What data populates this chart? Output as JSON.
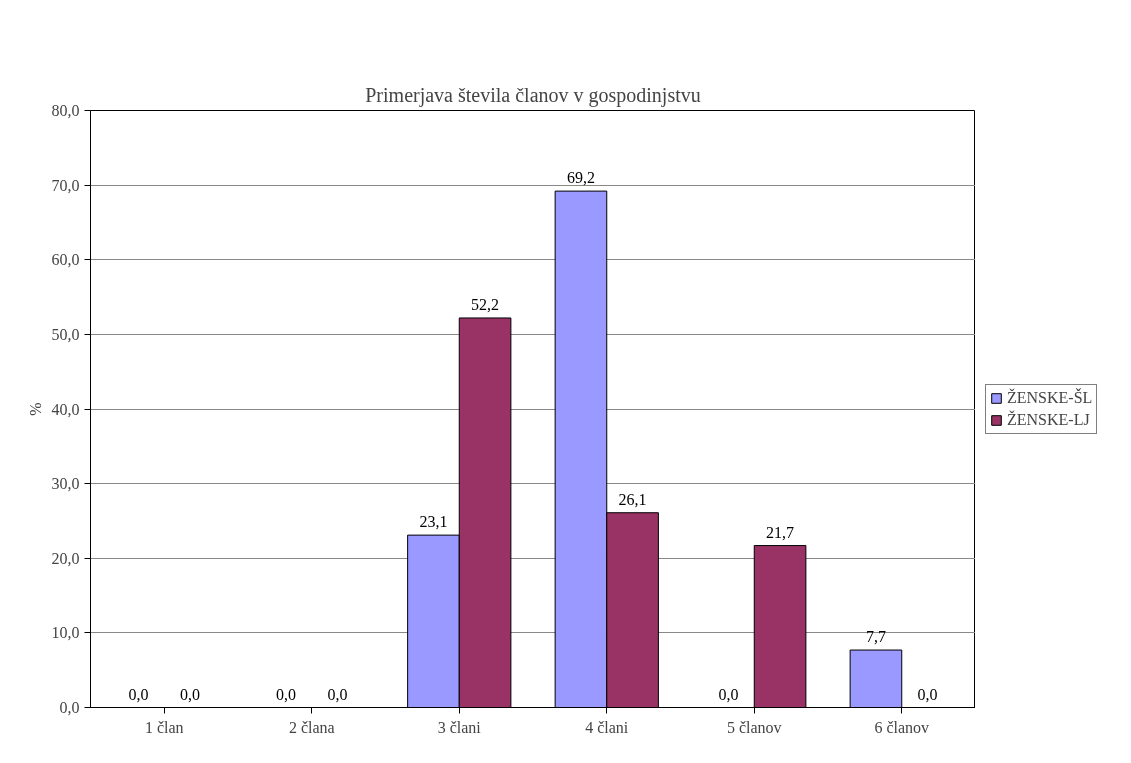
{
  "chart_data": {
    "type": "bar",
    "title": "Primerjava števila članov v gospodinjstvu",
    "ylabel": "%",
    "categories": [
      "1 član",
      "2 člana",
      "3 člani",
      "4 člani",
      "5 članov",
      "6 članov"
    ],
    "series": [
      {
        "name": "ŽENSKE-ŠL",
        "color": "#9999ff",
        "values": [
          0.0,
          0.0,
          23.1,
          69.2,
          0.0,
          7.7
        ],
        "value_labels": [
          "0,0",
          "0,0",
          "23,1",
          "69,2",
          "0,0",
          "7,7"
        ]
      },
      {
        "name": "ŽENSKE-LJ",
        "color": "#993366",
        "values": [
          0.0,
          0.0,
          52.2,
          26.1,
          21.7,
          0.0
        ],
        "value_labels": [
          "0,0",
          "0,0",
          "52,2",
          "26,1",
          "21,7",
          "0,0"
        ]
      }
    ],
    "ylim": [
      0,
      80
    ],
    "yticks": [
      {
        "value": 0,
        "label": "0,0"
      },
      {
        "value": 10,
        "label": "10,0"
      },
      {
        "value": 20,
        "label": "20,0"
      },
      {
        "value": 30,
        "label": "30,0"
      },
      {
        "value": 40,
        "label": "40,0"
      },
      {
        "value": 50,
        "label": "50,0"
      },
      {
        "value": 60,
        "label": "60,0"
      },
      {
        "value": 70,
        "label": "70,0"
      },
      {
        "value": 80,
        "label": "80,0"
      }
    ],
    "grid": "y",
    "legend": "right"
  }
}
